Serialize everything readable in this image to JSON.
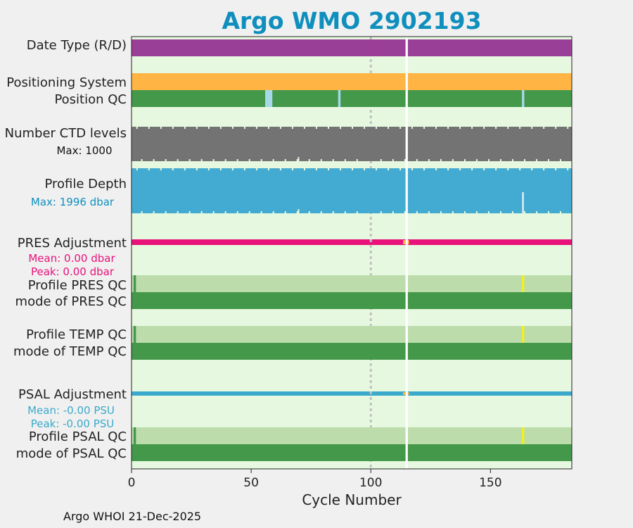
{
  "title": "Argo WMO 2902193",
  "footer": "Argo WHOI 21-Dec-2025",
  "colors": {
    "background": "#e6f9e0",
    "date_type": "#9a3f98",
    "positioning": "#ffb444",
    "qc_good": "#44984a",
    "qc_light": "#bcdcac",
    "qc_interp": "#a6d8ea",
    "qc_flag": "#f0f020",
    "ctd": "#737373",
    "depth": "#43abd1",
    "pres_adj": "#e8127a",
    "psal_adj": "#3aa9cb",
    "adj_gap": "#ffb444",
    "title": "#0e8fbe",
    "cycle_marker": "#c0c0c0"
  },
  "chart_data": {
    "type": "qc-strip",
    "title": "Argo WMO 2902193",
    "xlabel": "Cycle Number",
    "xlim": [
      0,
      184
    ],
    "xticks": [
      0,
      50,
      100,
      150
    ],
    "grid": false,
    "cycle_markers": [
      100
    ],
    "gaps": [
      115
    ],
    "rows": [
      {
        "label": "Date Type (R/D)",
        "kind": "solid",
        "color_key": "date_type"
      },
      {
        "label": "Positioning System",
        "kind": "solid",
        "color_key": "positioning"
      },
      {
        "label": "Position QC",
        "kind": "qc",
        "color_key": "qc_good",
        "marks": [
          {
            "cycle": 56,
            "width": 3,
            "color_key": "qc_interp"
          },
          {
            "cycle": 86.5,
            "width": 1,
            "color_key": "qc_interp"
          },
          {
            "cycle": 163.3,
            "width": 1,
            "color_key": "qc_interp"
          }
        ]
      },
      {
        "label": "Number CTD levels",
        "note": "Max: 1000",
        "note_color_key": "",
        "kind": "bar",
        "color_key": "ctd",
        "max": 1000
      },
      {
        "label": "Profile Depth",
        "note": "Max: 1996 dbar",
        "note_color_key": "title",
        "kind": "bar",
        "color_key": "depth",
        "max": 1996
      },
      {
        "label": "PRES Adjustment",
        "notes": [
          "Mean: 0.00 dbar",
          "Peak: 0.00 dbar"
        ],
        "note_color_key": "pres_adj",
        "mean": 0.0,
        "peak": 0.0,
        "kind": "adjustment",
        "color_key": "pres_adj"
      },
      {
        "label": "Profile PRES QC",
        "kind": "qc",
        "color_key": "qc_light",
        "marks": [
          {
            "cycle": 1,
            "width": 1,
            "color_key": "qc_good"
          },
          {
            "cycle": 163.3,
            "width": 1,
            "color_key": "qc_flag"
          }
        ]
      },
      {
        "label": "mode of PRES QC",
        "kind": "qc",
        "color_key": "qc_good",
        "marks": []
      },
      {
        "label": "Profile TEMP QC",
        "kind": "qc",
        "color_key": "qc_light",
        "marks": [
          {
            "cycle": 1,
            "width": 1,
            "color_key": "qc_good"
          },
          {
            "cycle": 163.3,
            "width": 1,
            "color_key": "qc_flag"
          }
        ]
      },
      {
        "label": "mode of TEMP QC",
        "kind": "qc",
        "color_key": "qc_good",
        "marks": []
      },
      {
        "label": "PSAL Adjustment",
        "notes": [
          "Mean: -0.00 PSU",
          "Peak: -0.00 PSU"
        ],
        "note_color_key": "psal_adj",
        "mean": -0.0,
        "peak": -0.0,
        "kind": "adjustment",
        "color_key": "psal_adj"
      },
      {
        "label": "Profile PSAL QC",
        "kind": "qc",
        "color_key": "qc_light",
        "marks": [
          {
            "cycle": 1,
            "width": 1,
            "color_key": "qc_good"
          },
          {
            "cycle": 163.3,
            "width": 1,
            "color_key": "qc_flag"
          }
        ]
      },
      {
        "label": "mode of PSAL QC",
        "kind": "qc",
        "color_key": "qc_good",
        "marks": []
      }
    ]
  }
}
